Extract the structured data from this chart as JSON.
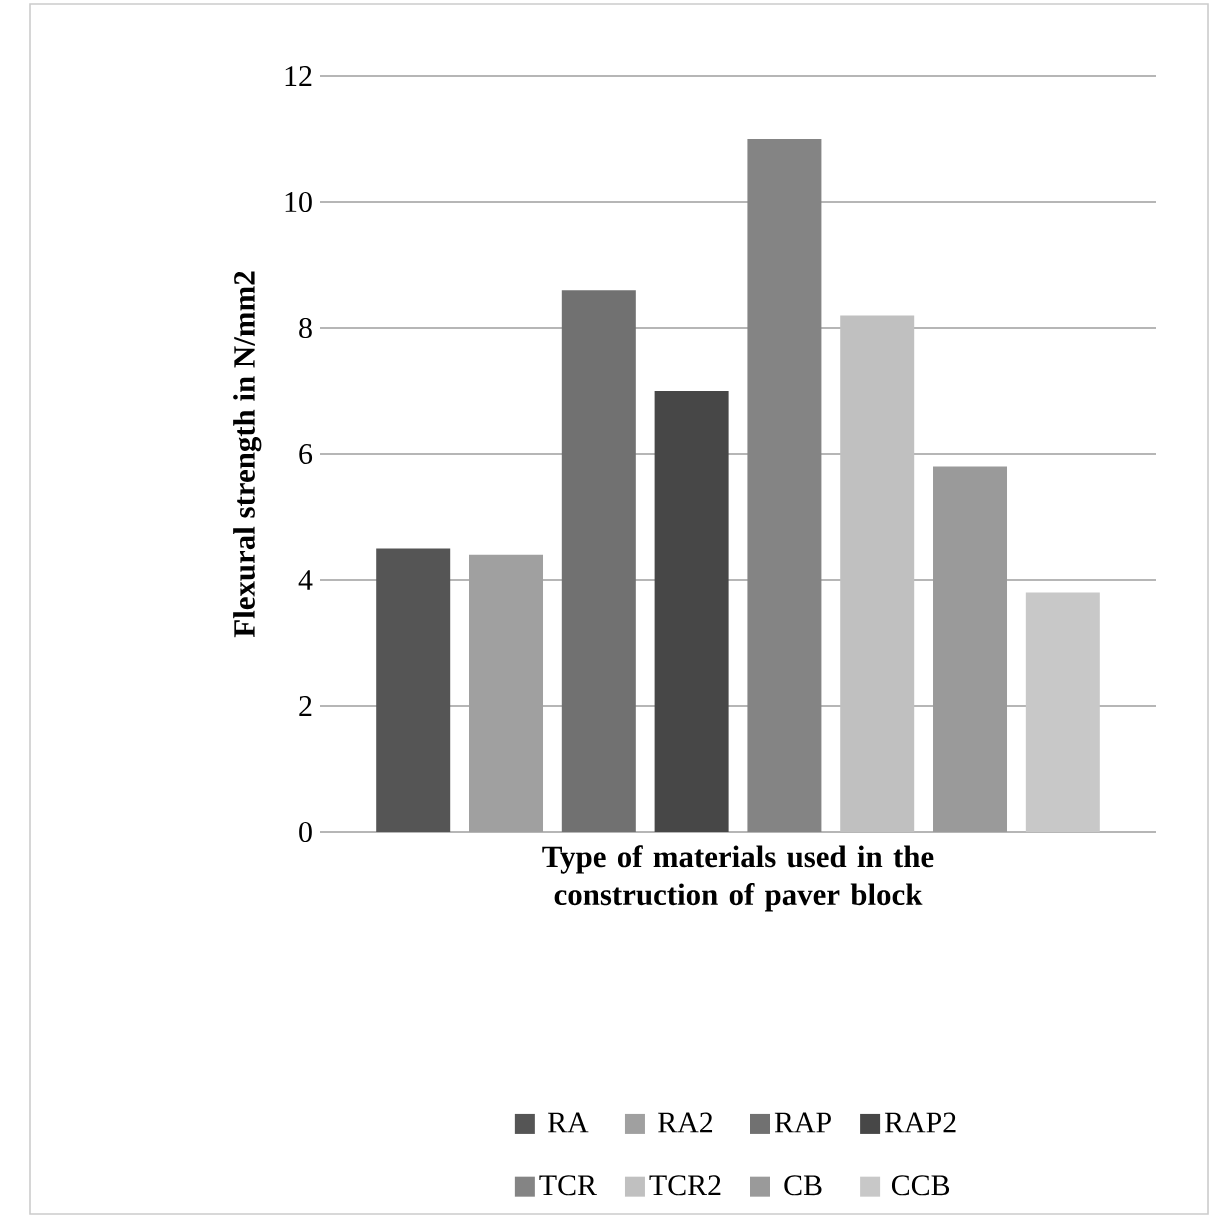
{
  "chart_data": {
    "type": "bar",
    "xlabel": "Type of materials used in the construction of paver block",
    "ylabel": "Flexural strength in N/mm2",
    "categories": [
      null
    ],
    "series": [
      {
        "name": "RA",
        "color": "#555555",
        "values": [
          4.5
        ]
      },
      {
        "name": "RA2",
        "color": "#a0a0a0",
        "values": [
          4.4
        ]
      },
      {
        "name": "RAP",
        "color": "#717171",
        "values": [
          8.6
        ]
      },
      {
        "name": "RAP2",
        "color": "#474747",
        "values": [
          7.0
        ]
      },
      {
        "name": "TCR",
        "color": "#848484",
        "values": [
          11.0
        ]
      },
      {
        "name": "TCR2",
        "color": "#c0c0c0",
        "values": [
          8.2
        ]
      },
      {
        "name": "CB",
        "color": "#9a9a9a",
        "values": [
          5.8
        ]
      },
      {
        "name": "CCB",
        "color": "#c8c8c8",
        "values": [
          3.8
        ]
      }
    ],
    "ylim": [
      0,
      12
    ],
    "yticks": [
      0,
      2,
      4,
      6,
      8,
      10,
      12
    ],
    "grid": "y",
    "legend": "bottom"
  }
}
